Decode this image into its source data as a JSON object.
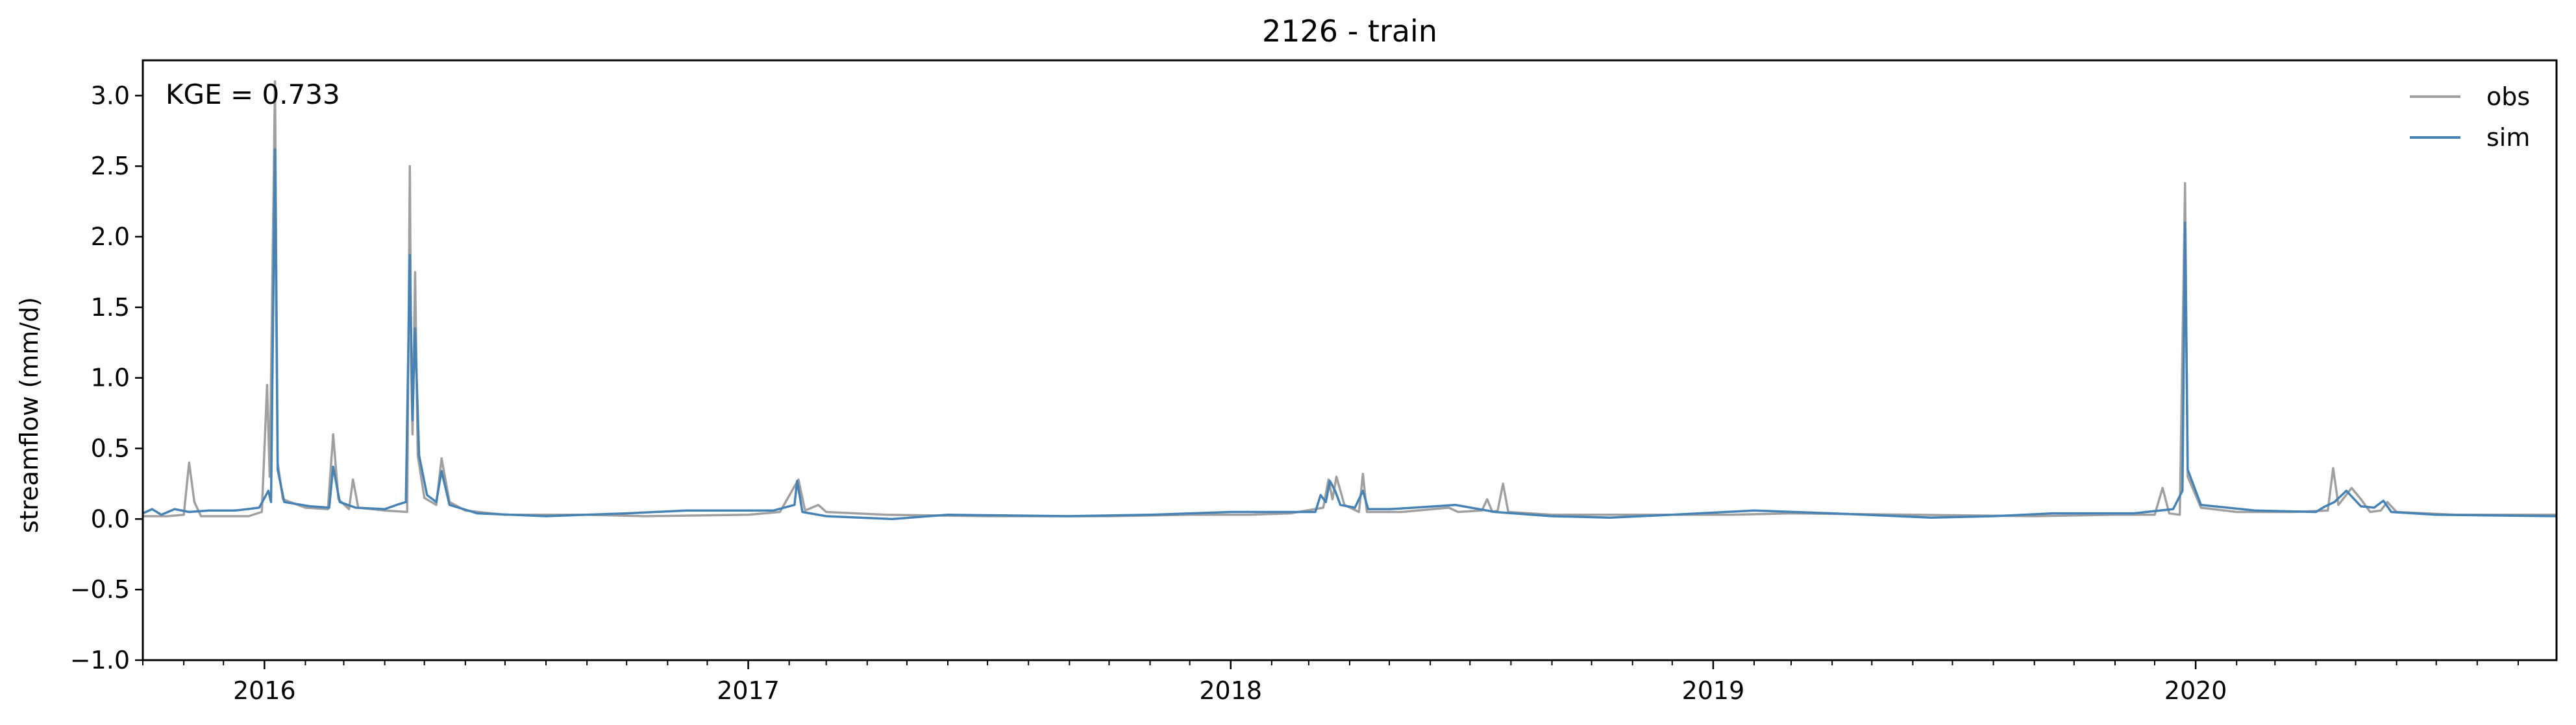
{
  "chart_data": {
    "type": "line",
    "title": "2126 - train",
    "ylabel": "streamflow (mm/d)",
    "xlabel": "",
    "annotation": "KGE = 0.733",
    "xlim": [
      "2015-10-01",
      "2020-09-30"
    ],
    "ylim": [
      -1.0,
      3.25
    ],
    "y_ticks": [
      -1.0,
      -0.5,
      0.0,
      0.5,
      1.0,
      1.5,
      2.0,
      2.5,
      3.0
    ],
    "y_tick_labels": [
      "−1.0",
      "−0.5",
      "0.0",
      "0.5",
      "1.0",
      "1.5",
      "2.0",
      "2.5",
      "3.0"
    ],
    "x_ticks": [
      "2016-01-01",
      "2017-01-01",
      "2018-01-01",
      "2019-01-01",
      "2020-01-01"
    ],
    "x_tick_labels": [
      "2016",
      "2017",
      "2018",
      "2019",
      "2020"
    ],
    "legend": {
      "position": "top-right",
      "entries": [
        "obs",
        "sim"
      ]
    },
    "grid": false,
    "series": [
      {
        "name": "obs",
        "color": "#a0a0a0",
        "points": [
          [
            "2015-10-01",
            0.02
          ],
          [
            "2015-10-20",
            0.02
          ],
          [
            "2015-11-01",
            0.03
          ],
          [
            "2015-11-05",
            0.4
          ],
          [
            "2015-11-09",
            0.12
          ],
          [
            "2015-11-14",
            0.02
          ],
          [
            "2015-12-20",
            0.02
          ],
          [
            "2015-12-30",
            0.05
          ],
          [
            "2016-01-03",
            0.95
          ],
          [
            "2016-01-05",
            0.3
          ],
          [
            "2016-01-09",
            3.1
          ],
          [
            "2016-01-11",
            0.4
          ],
          [
            "2016-01-15",
            0.14
          ],
          [
            "2016-02-01",
            0.08
          ],
          [
            "2016-02-18",
            0.07
          ],
          [
            "2016-02-22",
            0.6
          ],
          [
            "2016-02-26",
            0.14
          ],
          [
            "2016-03-05",
            0.07
          ],
          [
            "2016-03-08",
            0.28
          ],
          [
            "2016-03-12",
            0.08
          ],
          [
            "2016-04-01",
            0.06
          ],
          [
            "2016-04-18",
            0.05
          ],
          [
            "2016-04-20",
            2.5
          ],
          [
            "2016-04-21",
            1.1
          ],
          [
            "2016-04-22",
            0.6
          ],
          [
            "2016-04-24",
            1.75
          ],
          [
            "2016-04-26",
            0.45
          ],
          [
            "2016-05-01",
            0.15
          ],
          [
            "2016-05-10",
            0.1
          ],
          [
            "2016-05-14",
            0.43
          ],
          [
            "2016-05-20",
            0.12
          ],
          [
            "2016-06-01",
            0.06
          ],
          [
            "2016-07-01",
            0.03
          ],
          [
            "2016-09-01",
            0.03
          ],
          [
            "2016-10-15",
            0.02
          ],
          [
            "2017-01-01",
            0.03
          ],
          [
            "2017-01-25",
            0.05
          ],
          [
            "2017-02-08",
            0.28
          ],
          [
            "2017-02-13",
            0.06
          ],
          [
            "2017-02-23",
            0.1
          ],
          [
            "2017-03-01",
            0.05
          ],
          [
            "2017-04-15",
            0.03
          ],
          [
            "2017-07-01",
            0.02
          ],
          [
            "2017-10-01",
            0.02
          ],
          [
            "2017-12-01",
            0.03
          ],
          [
            "2018-01-15",
            0.03
          ],
          [
            "2018-02-15",
            0.04
          ],
          [
            "2018-03-12",
            0.08
          ],
          [
            "2018-03-16",
            0.28
          ],
          [
            "2018-03-19",
            0.14
          ],
          [
            "2018-03-22",
            0.3
          ],
          [
            "2018-03-28",
            0.1
          ],
          [
            "2018-04-08",
            0.05
          ],
          [
            "2018-04-11",
            0.32
          ],
          [
            "2018-04-14",
            0.05
          ],
          [
            "2018-05-10",
            0.05
          ],
          [
            "2018-06-15",
            0.08
          ],
          [
            "2018-06-22",
            0.05
          ],
          [
            "2018-07-10",
            0.06
          ],
          [
            "2018-07-14",
            0.14
          ],
          [
            "2018-07-18",
            0.05
          ],
          [
            "2018-07-22",
            0.06
          ],
          [
            "2018-07-26",
            0.25
          ],
          [
            "2018-07-30",
            0.05
          ],
          [
            "2018-09-01",
            0.03
          ],
          [
            "2018-11-01",
            0.03
          ],
          [
            "2019-01-15",
            0.03
          ],
          [
            "2019-03-01",
            0.04
          ],
          [
            "2019-06-01",
            0.03
          ],
          [
            "2019-09-01",
            0.02
          ],
          [
            "2019-11-01",
            0.03
          ],
          [
            "2019-12-01",
            0.03
          ],
          [
            "2019-12-07",
            0.22
          ],
          [
            "2019-12-12",
            0.04
          ],
          [
            "2019-12-20",
            0.03
          ],
          [
            "2019-12-24",
            2.38
          ],
          [
            "2019-12-26",
            0.3
          ],
          [
            "2020-01-05",
            0.08
          ],
          [
            "2020-02-01",
            0.05
          ],
          [
            "2020-03-15",
            0.05
          ],
          [
            "2020-04-10",
            0.06
          ],
          [
            "2020-04-14",
            0.36
          ],
          [
            "2020-04-18",
            0.1
          ],
          [
            "2020-04-28",
            0.22
          ],
          [
            "2020-05-05",
            0.14
          ],
          [
            "2020-05-12",
            0.05
          ],
          [
            "2020-05-20",
            0.06
          ],
          [
            "2020-05-25",
            0.12
          ],
          [
            "2020-06-01",
            0.05
          ],
          [
            "2020-07-15",
            0.03
          ],
          [
            "2020-09-30",
            0.03
          ]
        ]
      },
      {
        "name": "sim",
        "color": "#4682b4",
        "points": [
          [
            "2015-10-01",
            0.04
          ],
          [
            "2015-10-08",
            0.07
          ],
          [
            "2015-10-15",
            0.03
          ],
          [
            "2015-10-25",
            0.07
          ],
          [
            "2015-11-05",
            0.05
          ],
          [
            "2015-11-20",
            0.06
          ],
          [
            "2015-12-10",
            0.06
          ],
          [
            "2015-12-28",
            0.08
          ],
          [
            "2016-01-04",
            0.2
          ],
          [
            "2016-01-06",
            0.12
          ],
          [
            "2016-01-09",
            2.62
          ],
          [
            "2016-01-11",
            0.35
          ],
          [
            "2016-01-16",
            0.12
          ],
          [
            "2016-02-05",
            0.09
          ],
          [
            "2016-02-19",
            0.08
          ],
          [
            "2016-02-22",
            0.37
          ],
          [
            "2016-02-27",
            0.12
          ],
          [
            "2016-03-10",
            0.08
          ],
          [
            "2016-04-01",
            0.07
          ],
          [
            "2016-04-10",
            0.1
          ],
          [
            "2016-04-17",
            0.12
          ],
          [
            "2016-04-20",
            1.87
          ],
          [
            "2016-04-22",
            0.7
          ],
          [
            "2016-04-24",
            1.35
          ],
          [
            "2016-04-27",
            0.45
          ],
          [
            "2016-05-03",
            0.17
          ],
          [
            "2016-05-10",
            0.12
          ],
          [
            "2016-05-14",
            0.34
          ],
          [
            "2016-05-20",
            0.1
          ],
          [
            "2016-06-10",
            0.04
          ],
          [
            "2016-08-01",
            0.02
          ],
          [
            "2016-10-01",
            0.04
          ],
          [
            "2016-11-15",
            0.06
          ],
          [
            "2017-01-20",
            0.06
          ],
          [
            "2017-02-05",
            0.1
          ],
          [
            "2017-02-07",
            0.27
          ],
          [
            "2017-02-11",
            0.05
          ],
          [
            "2017-03-01",
            0.02
          ],
          [
            "2017-04-20",
            0.0
          ],
          [
            "2017-06-01",
            0.03
          ],
          [
            "2017-09-01",
            0.02
          ],
          [
            "2017-11-01",
            0.03
          ],
          [
            "2018-01-01",
            0.05
          ],
          [
            "2018-02-15",
            0.05
          ],
          [
            "2018-03-06",
            0.05
          ],
          [
            "2018-03-10",
            0.17
          ],
          [
            "2018-03-14",
            0.12
          ],
          [
            "2018-03-17",
            0.27
          ],
          [
            "2018-03-21",
            0.2
          ],
          [
            "2018-03-25",
            0.1
          ],
          [
            "2018-04-05",
            0.08
          ],
          [
            "2018-04-11",
            0.2
          ],
          [
            "2018-04-15",
            0.07
          ],
          [
            "2018-05-01",
            0.07
          ],
          [
            "2018-05-20",
            0.08
          ],
          [
            "2018-06-20",
            0.1
          ],
          [
            "2018-07-20",
            0.05
          ],
          [
            "2018-09-01",
            0.02
          ],
          [
            "2018-10-15",
            0.01
          ],
          [
            "2018-12-01",
            0.03
          ],
          [
            "2019-02-01",
            0.06
          ],
          [
            "2019-04-01",
            0.04
          ],
          [
            "2019-06-15",
            0.01
          ],
          [
            "2019-08-01",
            0.02
          ],
          [
            "2019-09-15",
            0.04
          ],
          [
            "2019-11-15",
            0.04
          ],
          [
            "2019-12-15",
            0.07
          ],
          [
            "2019-12-22",
            0.2
          ],
          [
            "2019-12-24",
            2.1
          ],
          [
            "2019-12-26",
            0.35
          ],
          [
            "2020-01-05",
            0.1
          ],
          [
            "2020-02-15",
            0.06
          ],
          [
            "2020-04-01",
            0.05
          ],
          [
            "2020-04-08",
            0.09
          ],
          [
            "2020-04-15",
            0.12
          ],
          [
            "2020-04-24",
            0.2
          ],
          [
            "2020-05-05",
            0.09
          ],
          [
            "2020-05-15",
            0.08
          ],
          [
            "2020-05-22",
            0.13
          ],
          [
            "2020-05-28",
            0.05
          ],
          [
            "2020-07-01",
            0.03
          ],
          [
            "2020-09-30",
            0.02
          ]
        ]
      }
    ]
  }
}
